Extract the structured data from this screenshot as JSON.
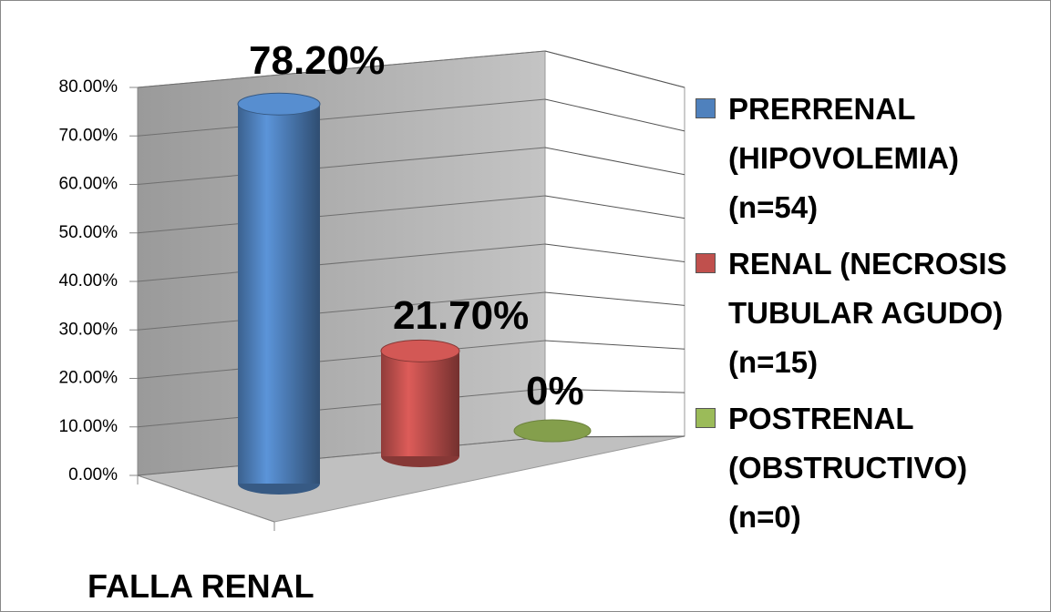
{
  "chart_data": {
    "type": "bar",
    "categories": [
      "FALLA RENAL"
    ],
    "series": [
      {
        "name": "PRERRENAL (HIPOVOLEMIA) (n=54)",
        "color": "#4f81bd",
        "values": [
          78.2
        ],
        "value_labels": [
          "78.20%"
        ]
      },
      {
        "name": "RENAL (NECROSIS TUBULAR AGUDO) (n=15)",
        "color": "#c0504d",
        "values": [
          21.7
        ],
        "value_labels": [
          "21.70%"
        ]
      },
      {
        "name": "POSTRENAL (OBSTRUCTIVO) (n=0)",
        "color": "#9bbb59",
        "values": [
          0
        ],
        "value_labels": [
          "0%"
        ]
      }
    ],
    "ylim": [
      0,
      80
    ],
    "yticks": [
      {
        "value": 0,
        "label": "0.00%"
      },
      {
        "value": 10,
        "label": "10.00%"
      },
      {
        "value": 20,
        "label": "20.00%"
      },
      {
        "value": 30,
        "label": "30.00%"
      },
      {
        "value": 40,
        "label": "40.00%"
      },
      {
        "value": 50,
        "label": "50.00%"
      },
      {
        "value": 60,
        "label": "60.00%"
      },
      {
        "value": 70,
        "label": "70.00%"
      },
      {
        "value": 80,
        "label": "80.00%"
      }
    ],
    "grid": true,
    "legend": "right"
  }
}
